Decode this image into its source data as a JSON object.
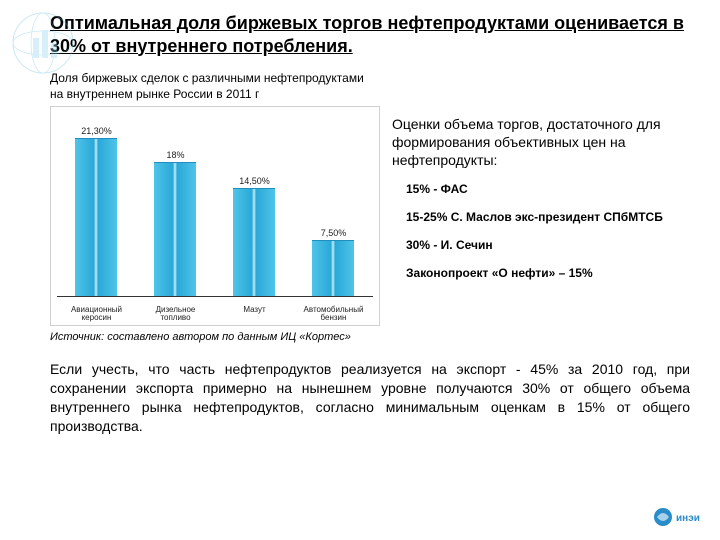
{
  "title": "Оптимальная доля биржевых торгов нефтепродуктами оценивается в 30% от внутреннего потребления.",
  "chart": {
    "caption": "Доля биржевых сделок с различными нефтепродуктами на внутреннем рынке России в 2011 г",
    "type": "bar",
    "categories": [
      "Авиационный керосин",
      "Дизельное топливо",
      "Мазут",
      "Автомобильный бензин"
    ],
    "values": [
      21.3,
      18,
      14.5,
      7.5
    ],
    "value_labels": [
      "21,30%",
      "18%",
      "14,50%",
      "7,50%"
    ],
    "ymax": 25,
    "bar_color_light": "#4fc4e8",
    "bar_color_dark": "#2aa8d8",
    "bar_color_hi": "#c6eef9",
    "border_color": "#d0d0d0",
    "value_label_fontsize": 9,
    "category_fontsize": 8,
    "background_color": "#ffffff"
  },
  "source": "Источник: составлено автором по данным ИЦ «Кортес»",
  "assess": {
    "title": "Оценки объема торгов, достаточного для формирования объективных цен на нефтепродукты:",
    "items": [
      "15% - ФАС",
      "15-25% С. Маслов экс-президент СПбМТСБ",
      "30% - И. Сечин",
      "Законопроект «О нефти» – 15%"
    ]
  },
  "conclusion": "Если учесть, что часть нефтепродуктов реализуется на экспорт - 45% за 2010 год, при сохранении экспорта примерно на нынешнем уровне получаются 30% от общего объема внутреннего рынка нефтепродуктов, согласно минимальным оценкам в 15% от общего производства.",
  "logo_text": "инэи"
}
